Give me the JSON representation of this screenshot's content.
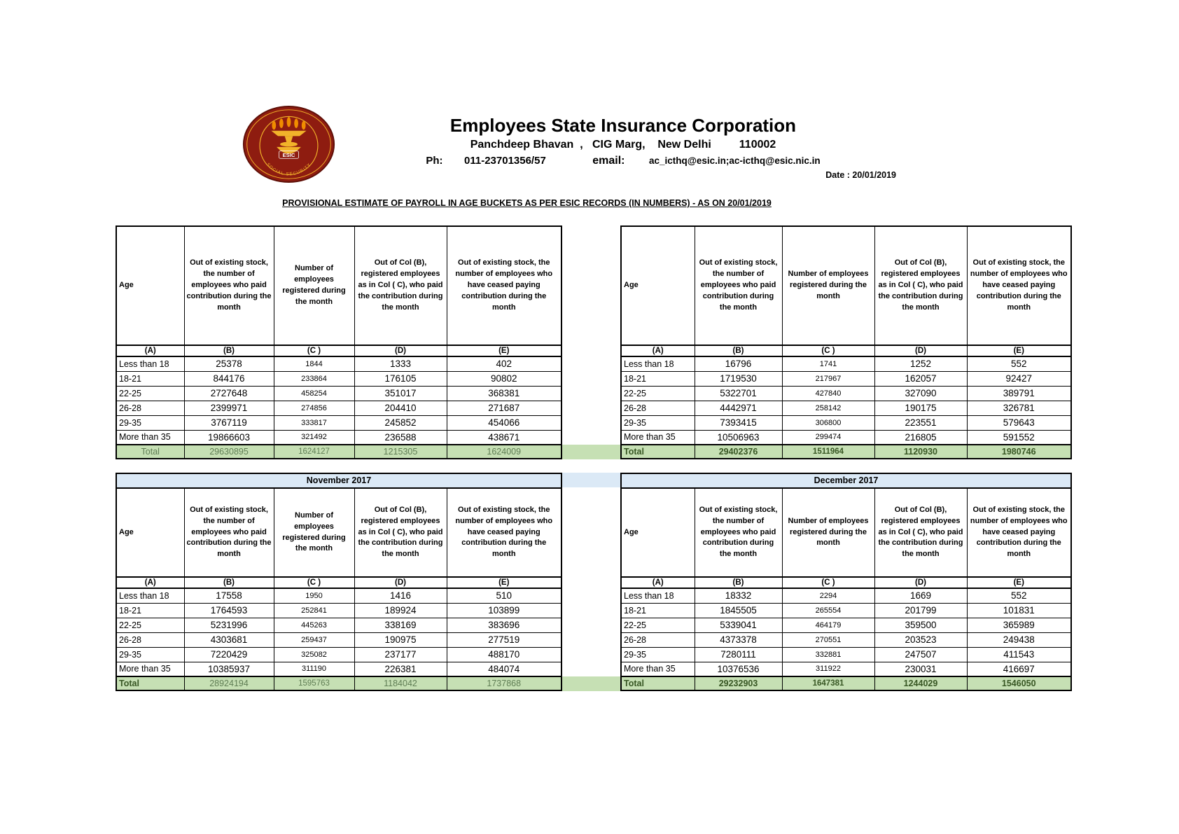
{
  "header": {
    "org_name": "Employees State Insurance Corporation",
    "address_line": "Panchdeep Bhavan  ,   CIG Marg,    New Delhi         110002",
    "phone_label": "Ph:",
    "phone_number": "011-23701356/57",
    "email_label": "email:",
    "email_address": "ac_icthq@esic.in;ac-icthq@esic.nic.in",
    "date_line": "Date : 20/01/2019",
    "report_title": "PROVISIONAL ESTIMATE OF PAYROLL IN AGE BUCKETS AS PER ESIC RECORDS (IN NUMBERS) - AS ON 20/01/2019",
    "logo": {
      "esic_text": "ESIC",
      "ring_text": "SOCIAL SECURITY"
    }
  },
  "colors": {
    "total_bg": "#c6e0b4",
    "total_text": "#5f7d54",
    "total_text_bold": "#375623",
    "month_bg": "#dbe9f6",
    "logo_maroon": "#8e1c10",
    "logo_maroon_dark": "#5e0f07",
    "logo_gold": "#f2b32a",
    "logo_flame": "#f08c00"
  },
  "table_template": {
    "col_headers": [
      "Age",
      "Out of existing stock, the number of employees who paid contribution during the month",
      "Number of employees registered during the month",
      "Out of Col (B), registered employees as in Col ( C), who paid the contribution during the month",
      "Out of existing stock, the number of employees  who have ceased paying contribution during the month"
    ],
    "col_letters": [
      "(A)",
      "(B)",
      "(C )",
      "(D)",
      "(E)"
    ]
  },
  "tables": [
    {
      "position": "top-left",
      "month": null,
      "rows": [
        [
          "Less than 18",
          "25378",
          "1844",
          "1333",
          "402"
        ],
        [
          "18-21",
          "844176",
          "233864",
          "176105",
          "90802"
        ],
        [
          "22-25",
          "2727648",
          "458254",
          "351017",
          "368381"
        ],
        [
          "26-28",
          "2399971",
          "274856",
          "204410",
          "271687"
        ],
        [
          "29-35",
          "3767119",
          "333817",
          "245852",
          "454066"
        ],
        [
          "More than 35",
          "19866603",
          "321492",
          "236588",
          "438671"
        ]
      ],
      "total": [
        "Total",
        "29630895",
        "1624127",
        "1215305",
        "1624009"
      ],
      "total_label_align": "center",
      "total_label_bold": false,
      "total_values_bold": false
    },
    {
      "position": "top-right",
      "month": null,
      "rows": [
        [
          "Less than 18",
          "16796",
          "1741",
          "1252",
          "552"
        ],
        [
          "18-21",
          "1719530",
          "217967",
          "162057",
          "92427"
        ],
        [
          "22-25",
          "5322701",
          "427840",
          "327090",
          "389791"
        ],
        [
          "26-28",
          "4442971",
          "258142",
          "190175",
          "326781"
        ],
        [
          "29-35",
          "7393415",
          "306800",
          "223551",
          "579643"
        ],
        [
          "More than 35",
          "10506963",
          "299474",
          "216805",
          "591552"
        ]
      ],
      "total": [
        "Total",
        "29402376",
        "1511964",
        "1120930",
        "1980746"
      ],
      "total_label_align": "left",
      "total_label_bold": true,
      "total_values_bold": true
    },
    {
      "position": "bottom-left",
      "month": "November 2017",
      "rows": [
        [
          "Less than 18",
          "17558",
          "1950",
          "1416",
          "510"
        ],
        [
          "18-21",
          "1764593",
          "252841",
          "189924",
          "103899"
        ],
        [
          "22-25",
          "5231996",
          "445263",
          "338169",
          "383696"
        ],
        [
          "26-28",
          "4303681",
          "259437",
          "190975",
          "277519"
        ],
        [
          "29-35",
          "7220429",
          "325082",
          "237177",
          "488170"
        ],
        [
          "More than 35",
          "10385937",
          "311190",
          "226381",
          "484074"
        ]
      ],
      "total": [
        "Total",
        "28924194",
        "1595763",
        "1184042",
        "1737868"
      ],
      "total_label_align": "left",
      "total_label_bold": true,
      "total_values_bold": false
    },
    {
      "position": "bottom-right",
      "month": "December 2017",
      "rows": [
        [
          "Less than 18",
          "18332",
          "2294",
          "1669",
          "552"
        ],
        [
          "18-21",
          "1845505",
          "265554",
          "201799",
          "101831"
        ],
        [
          "22-25",
          "5339041",
          "464179",
          "359500",
          "365989"
        ],
        [
          "26-28",
          "4373378",
          "270551",
          "203523",
          "249438"
        ],
        [
          "29-35",
          "7280111",
          "332881",
          "247507",
          "411543"
        ],
        [
          "More than 35",
          "10376536",
          "311922",
          "230031",
          "416697"
        ]
      ],
      "total": [
        "Total",
        "29232903",
        "1647381",
        "1244029",
        "1546050"
      ],
      "total_label_align": "left",
      "total_label_bold": true,
      "total_values_bold": true
    }
  ]
}
